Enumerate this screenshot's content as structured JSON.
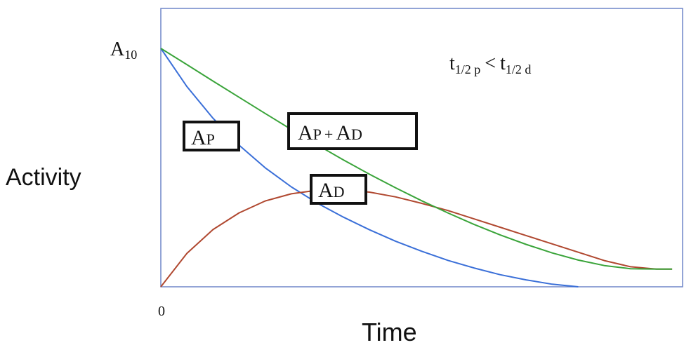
{
  "chart_data": {
    "type": "line",
    "xlabel": "Time",
    "ylabel": "Activity",
    "x_tick_label": "0",
    "y_tick_label": {
      "main": "A",
      "sub": "10"
    },
    "condition": {
      "t1": "t",
      "sub1": "1/2 p",
      "op": "<",
      "t2": "t",
      "sub2": "1/2 d"
    },
    "xlim": [
      0,
      100
    ],
    "ylim": [
      0,
      100
    ],
    "grid": false,
    "series": [
      {
        "name": "AP",
        "label": {
          "a": "A",
          "s": "P"
        },
        "color": "#3a6fd8",
        "x": [
          0,
          5,
          10,
          15,
          20,
          25,
          30,
          35,
          40,
          45,
          50,
          55,
          60,
          65,
          70,
          75,
          80
        ],
        "y": [
          100,
          84.0,
          70.7,
          59.4,
          49.9,
          41.9,
          35.1,
          29.2,
          23.9,
          19.1,
          14.9,
          11.1,
          7.9,
          5.1,
          2.9,
          1.1,
          0
        ]
      },
      {
        "name": "AD",
        "label": {
          "a": "A",
          "s": "D"
        },
        "color": "#b04830",
        "x": [
          0,
          5,
          10,
          15,
          20,
          25,
          30,
          35,
          40,
          45,
          50,
          55,
          60,
          65,
          70,
          75,
          80,
          85,
          90,
          95,
          98
        ],
        "y": [
          0,
          14.0,
          24.0,
          31.0,
          36.0,
          39.0,
          40.5,
          40.7,
          39.7,
          37.7,
          35.0,
          32.0,
          28.5,
          25.0,
          21.5,
          18.0,
          14.5,
          11.0,
          8.4,
          7.4,
          7.4
        ]
      },
      {
        "name": "AP + AD",
        "label": {
          "a1": "A",
          "s1": "P",
          "plus": "+",
          "a2": "A",
          "s2": "D"
        },
        "color": "#3aa43a",
        "x": [
          0,
          5,
          10,
          15,
          20,
          25,
          30,
          35,
          40,
          45,
          50,
          55,
          60,
          65,
          70,
          75,
          80,
          85,
          90,
          95,
          98
        ],
        "y": [
          100,
          93.2,
          86.3,
          79.5,
          72.7,
          66.0,
          59.5,
          53.2,
          47.2,
          41.5,
          36.1,
          31.0,
          26.2,
          21.8,
          17.8,
          14.2,
          11.2,
          8.9,
          7.6,
          7.4,
          7.4
        ]
      }
    ]
  }
}
